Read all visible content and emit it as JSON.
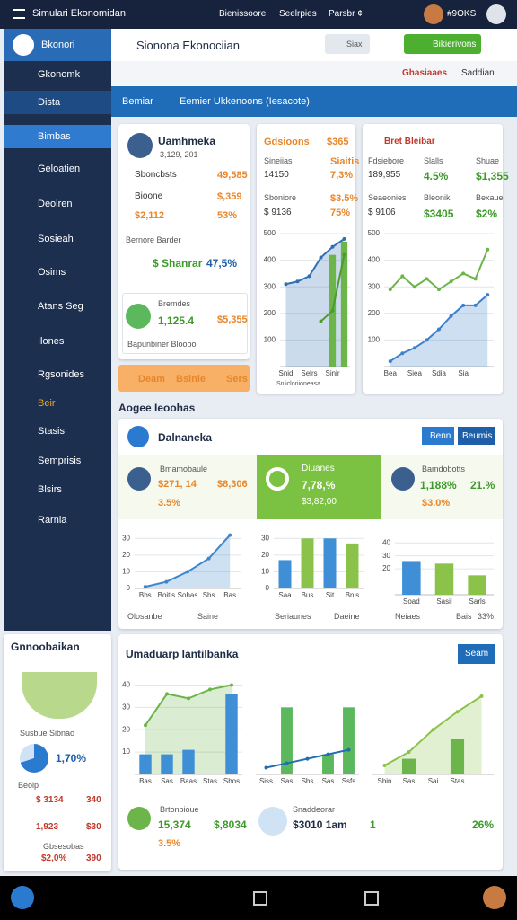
{
  "top_bar": {
    "title": "Simulari Ekonomidan",
    "links": [
      "Bienissoore",
      "Seelrpies",
      "Parsbr ¢"
    ],
    "user": "#9OKS"
  },
  "sidebar": {
    "logo": "Bkonori",
    "section": "Gkonomk",
    "items": [
      "Dista",
      "Bimbas",
      "Geloatien",
      "Deolren",
      "Sosieah",
      "Osims",
      "Atans Seg",
      "Ilones",
      "Rgsonides",
      "Beir",
      "Stasis",
      "Semprisis",
      "Blsirs",
      "Rarnia"
    ]
  },
  "header": {
    "title": "Sionona Ekonociian",
    "search": "Siax",
    "action": "Bikierivons",
    "breadcrumb": [
      "Ghasiaaes",
      "Saddian"
    ]
  },
  "tabs": [
    "Bemiar",
    "Eemier Ukkenoons (Iesacote)"
  ],
  "profile_card": {
    "name": "Uamhmeka",
    "id": "3,129, 201",
    "rows": [
      [
        "Sboncbsts",
        "49,585"
      ],
      [
        "Bioone",
        "$,359"
      ],
      [
        "$2,112",
        "53%"
      ]
    ],
    "note": "Bernore Barder",
    "metric": [
      "$ Shanrar",
      "47,5%"
    ],
    "box": {
      "label": "Bremdes",
      "value": "1,125.4",
      "amount": "$5,355",
      "caption": "Bapunbiner Bloobo"
    },
    "actions": [
      "Deam",
      "Bsinie",
      "Sers"
    ]
  },
  "metrics_card": {
    "title": "Gdsioons",
    "title_value": "$365",
    "rows": [
      [
        "Sineiias",
        "Siaitis"
      ],
      [
        "14150",
        "7,3%"
      ],
      [
        "Sboniore",
        "$3.5%"
      ],
      [
        "$ 9136",
        "75%"
      ]
    ],
    "footer": "Sniicloriioneasa"
  },
  "growth_card": {
    "title": "Bret Bleibar",
    "rows": [
      [
        "Fdsiebore",
        "Slalls",
        "Shuae"
      ],
      [
        "189,955",
        "4.5%",
        "$1,355"
      ],
      [
        "Seaeonies",
        "Bleonik",
        "Bexaue"
      ],
      [
        "$ 9106",
        "$3405",
        "$2%"
      ]
    ]
  },
  "section_label": "Aogee Ieoohas",
  "panel": {
    "title": "Dalnaneka",
    "buttons": [
      "Benn",
      "Beumis"
    ],
    "stats": [
      {
        "label": "Bmamobaule",
        "value": "$271, 14",
        "extra": "$8,306",
        "change": "3.5%"
      },
      {
        "label": "Diuanes",
        "value": "7,78,%",
        "extra": "$3,82,00"
      },
      {
        "label": "Bamdobotts",
        "value": "1,188%",
        "extra": "21.%",
        "change": "$3.0%"
      }
    ],
    "footer": [
      "Olosanbe",
      "Saine",
      "Seriaunes",
      "Daeine",
      "Neiaes",
      "Bais",
      "33%"
    ]
  },
  "side_panel": {
    "title": "Gnnoobaikan",
    "caption": "Susbue Sibnao",
    "share": "1,70%",
    "list_title": "Beoip",
    "rows": [
      [
        "$ 3134",
        "340"
      ],
      [
        "1,923",
        "$30"
      ]
    ],
    "person": "Gbsesobas",
    "person_rows": [
      "$2,0%",
      "390"
    ]
  },
  "summary": {
    "title": "Umaduarp lantilbanka",
    "button": "Seam",
    "items": [
      {
        "label": "Brtonbioue",
        "value": "15,374",
        "extra": "$,8034",
        "change": "3.5%"
      },
      {
        "label": "Snaddeorar",
        "value": "$3010 1am",
        "extra": "1",
        "change": "26%"
      }
    ]
  },
  "charts": [
    {
      "type": "combo",
      "categories": [
        "Snid",
        null,
        "Selrs",
        null,
        "Sinir",
        null
      ],
      "ylim": [
        0,
        500
      ],
      "yticks": [
        100,
        200,
        300,
        400,
        500
      ],
      "series": [
        {
          "type": "area",
          "color": "#2f6fb3",
          "values": [
            310,
            320,
            340,
            410,
            450,
            480
          ]
        },
        {
          "type": "bar",
          "color": "#6cb54a",
          "values": [
            null,
            null,
            null,
            null,
            420,
            470
          ]
        },
        {
          "type": "line",
          "color": "#4e9a2e",
          "values": [
            null,
            null,
            null,
            170,
            210,
            420
          ]
        }
      ]
    },
    {
      "type": "combo",
      "categories": [
        "Bea",
        null,
        "Siea",
        null,
        "Sdia",
        null,
        "Sia",
        null,
        null
      ],
      "ylim": [
        0,
        500
      ],
      "yticks": [
        100,
        200,
        300,
        400,
        500
      ],
      "series": [
        {
          "type": "line",
          "color": "#6cb54a",
          "values": [
            290,
            340,
            300,
            330,
            290,
            320,
            350,
            330,
            440
          ]
        },
        {
          "type": "area",
          "color": "#3d80cc",
          "values": [
            20,
            50,
            70,
            100,
            140,
            190,
            230,
            230,
            270
          ]
        }
      ]
    },
    {
      "type": "area",
      "categories": [
        "Bbs",
        "Boitis",
        "Sohas",
        "Shs",
        "Bas"
      ],
      "ylim": [
        0,
        35
      ],
      "yticks": [
        0,
        10,
        20,
        30
      ],
      "series": [
        {
          "type": "area",
          "color": "#3d86cc",
          "values": [
            1,
            4,
            10,
            18,
            32
          ]
        }
      ]
    },
    {
      "type": "bar",
      "categories": [
        "Saa",
        "Bus",
        "Sit",
        "Bnis"
      ],
      "ylim": [
        0,
        35
      ],
      "yticks": [
        0,
        10,
        20,
        30
      ],
      "series": [
        {
          "type": "bar",
          "color": "#3f8fd6",
          "values": [
            17,
            null,
            30,
            null
          ]
        },
        {
          "type": "bar",
          "color": "#8bc34a",
          "values": [
            null,
            30,
            null,
            27
          ]
        }
      ]
    },
    {
      "type": "bar",
      "categories": [
        "Soad",
        "Sasil",
        "Sarls"
      ],
      "ylim": [
        0,
        45
      ],
      "yticks": [
        20,
        30,
        40
      ],
      "series": [
        {
          "type": "bar",
          "color": "#3f8fd6",
          "values": [
            26,
            null,
            null
          ]
        },
        {
          "type": "bar",
          "color": "#8bc34a",
          "values": [
            null,
            24,
            15
          ]
        }
      ]
    },
    {
      "type": "combo",
      "categories": [
        "Bas",
        "Sas",
        "Baas",
        "Stas",
        "Sbos"
      ],
      "ylim": [
        0,
        45
      ],
      "yticks": [
        10,
        20,
        30,
        40
      ],
      "series": [
        {
          "type": "area",
          "color": "#6cb54a",
          "values": [
            22,
            36,
            34,
            38,
            40
          ]
        },
        {
          "type": "bar",
          "color": "#3f8fd6",
          "values": [
            9,
            9,
            11,
            null,
            36
          ]
        }
      ]
    },
    {
      "type": "combo",
      "categories": [
        "Siss",
        "Sas",
        "Sbs",
        "Sas",
        "Ssfs"
      ],
      "ylim": [
        0,
        45
      ],
      "series": [
        {
          "type": "bar",
          "color": "#5cb85c",
          "values": [
            null,
            30,
            null,
            9,
            30
          ]
        },
        {
          "type": "line",
          "color": "#1f6fb3",
          "values": [
            3,
            5,
            7,
            9,
            11
          ]
        }
      ]
    },
    {
      "type": "combo",
      "categories": [
        "Sbin",
        "Sas",
        "Sai",
        "Stas",
        null
      ],
      "ylim": [
        0,
        45
      ],
      "series": [
        {
          "type": "area",
          "color": "#8bc34a",
          "values": [
            4,
            10,
            20,
            28,
            35
          ]
        },
        {
          "type": "bar",
          "color": "#6cb54a",
          "values": [
            null,
            7,
            null,
            16,
            null
          ]
        }
      ]
    }
  ]
}
